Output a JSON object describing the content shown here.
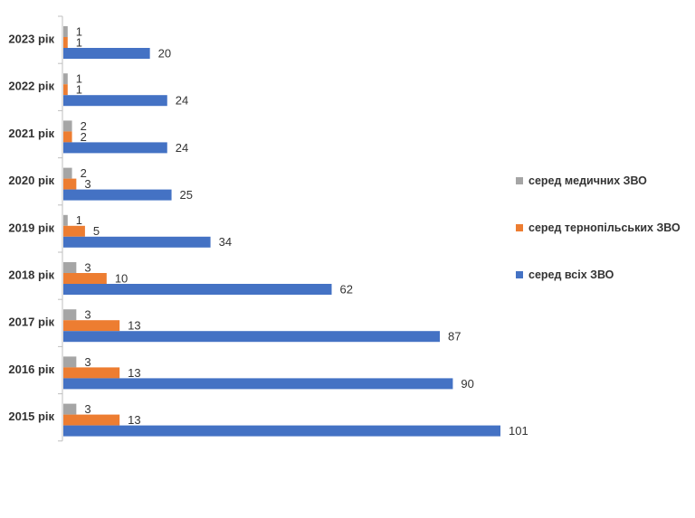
{
  "chart_data": {
    "type": "bar",
    "orientation": "horizontal",
    "categories": [
      "2023 рік",
      "2022 рік",
      "2021 рік",
      "2020 рік",
      "2019 рік",
      "2018 рік",
      "2017 рік",
      "2016 рік",
      "2015 рік"
    ],
    "series": [
      {
        "name": "серед медичних ЗВО",
        "color": "#a5a5a5",
        "values": [
          1,
          1,
          2,
          2,
          1,
          3,
          3,
          3,
          3
        ]
      },
      {
        "name": "серед тернопільських ЗВО",
        "color": "#ed7d31",
        "values": [
          1,
          1,
          2,
          3,
          5,
          10,
          13,
          13,
          13
        ]
      },
      {
        "name": "серед всіх ЗВО",
        "color": "#4472c4",
        "values": [
          20,
          24,
          24,
          25,
          34,
          62,
          87,
          90,
          101
        ]
      }
    ],
    "legend_order": [
      "серед медичних ЗВО",
      "серед тернопільських ЗВО",
      "серед всіх ЗВО"
    ],
    "legend_position": "right",
    "xlim": [
      0,
      101
    ],
    "grid": false,
    "title": "",
    "xlabel": "",
    "ylabel": ""
  }
}
